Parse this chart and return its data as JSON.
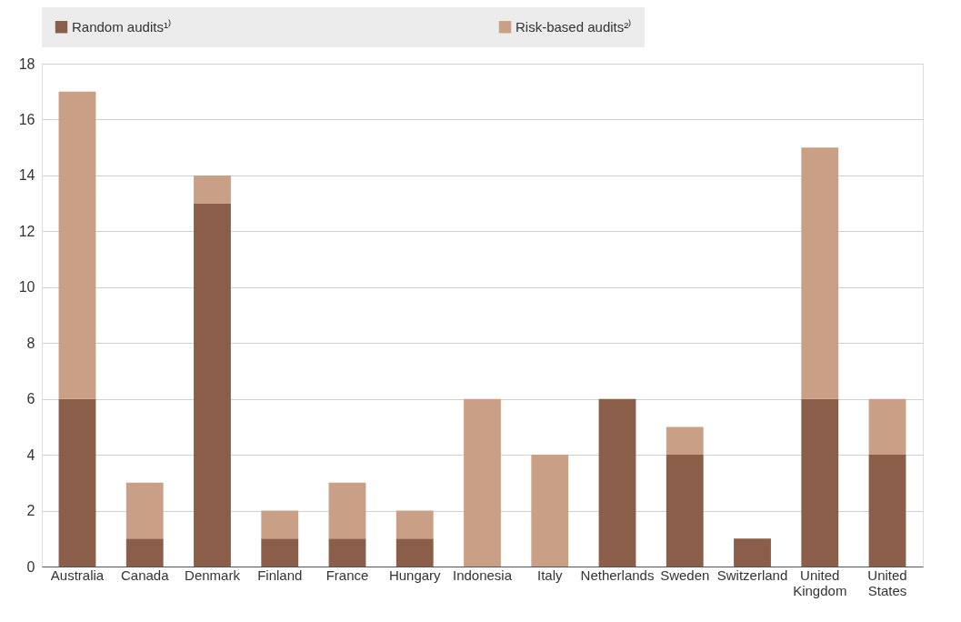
{
  "chart_data": {
    "type": "bar",
    "stacked": true,
    "categories": [
      "Australia",
      "Canada",
      "Denmark",
      "Finland",
      "France",
      "Hungary",
      "Indonesia",
      "Italy",
      "Netherlands",
      "Sweden",
      "Switzerland",
      "United Kingdom",
      "United States"
    ],
    "series": [
      {
        "name": "Random audits¹⁾",
        "color": "#8b5e49",
        "values": [
          6,
          1,
          13,
          1,
          1,
          1,
          0,
          0,
          6,
          4,
          1,
          6,
          4
        ]
      },
      {
        "name": "Risk-based audits²⁾",
        "color": "#c9a085",
        "values": [
          11,
          2,
          1,
          1,
          2,
          1,
          6,
          4,
          0,
          1,
          0,
          9,
          2
        ]
      }
    ],
    "ylim": [
      0,
      18
    ],
    "yticks": [
      0,
      2,
      4,
      6,
      8,
      10,
      12,
      14,
      16,
      18
    ],
    "grid": "y",
    "legend": "top"
  }
}
